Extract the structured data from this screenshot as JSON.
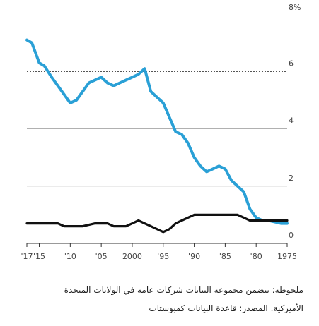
{
  "chart_data": {
    "type": "line",
    "x_tick_labels": [
      "'17",
      "'15",
      "'10",
      "'05",
      "2000",
      "'95",
      "'90",
      "'85",
      "'80",
      "1975"
    ],
    "y_tick_labels": [
      "8%",
      "6",
      "4",
      "2",
      "0"
    ],
    "ylim": [
      0,
      8
    ],
    "grid": "horizontal",
    "reference_line": 6,
    "colors": {
      "series_1": "#2aa0d6",
      "series_2": "#111111",
      "grid": "#b0b0b0",
      "ref": "#555555"
    },
    "series": [
      {
        "x": [
          2017,
          2016.2,
          2015,
          2014.2,
          2013,
          2012,
          2011,
          2010,
          2009,
          2008,
          2007,
          2006,
          2005,
          2004,
          2003,
          2002,
          2001,
          2000,
          1999,
          1998,
          1997,
          1996,
          1995,
          1994,
          1993,
          1992,
          1991,
          1990,
          1989,
          1988,
          1987,
          1986,
          1985,
          1984,
          1983,
          1982,
          1981,
          1980,
          1979,
          1978,
          1977,
          1976,
          1975
        ],
        "values": [
          7.1,
          7.0,
          6.3,
          6.2,
          5.8,
          5.5,
          5.2,
          4.9,
          5.0,
          5.3,
          5.6,
          5.7,
          5.8,
          5.6,
          5.5,
          5.6,
          5.7,
          5.8,
          5.9,
          6.1,
          5.3,
          5.1,
          4.9,
          4.4,
          3.9,
          3.8,
          3.5,
          3.0,
          2.7,
          2.5,
          2.6,
          2.7,
          2.6,
          2.2,
          2.0,
          1.8,
          1.2,
          0.9,
          0.8,
          0.8,
          0.75,
          0.7,
          0.7
        ]
      },
      {
        "x": [
          2017,
          2015,
          2013,
          2012,
          2011,
          2010,
          2009,
          2008,
          2007,
          2006,
          2005,
          2004,
          2003,
          2002,
          2001,
          2000,
          1999,
          1998,
          1997,
          1996,
          1995,
          1994,
          1993,
          1992,
          1991,
          1990,
          1989,
          1988,
          1987,
          1986,
          1985,
          1984,
          1983,
          1982,
          1981,
          1980,
          1979,
          1978,
          1977,
          1976,
          1975
        ],
        "values": [
          0.7,
          0.7,
          0.7,
          0.7,
          0.6,
          0.6,
          0.6,
          0.6,
          0.65,
          0.7,
          0.7,
          0.7,
          0.6,
          0.6,
          0.6,
          0.7,
          0.8,
          0.7,
          0.6,
          0.5,
          0.4,
          0.5,
          0.7,
          0.8,
          0.9,
          1.0,
          1.0,
          1.0,
          1.0,
          1.0,
          1.0,
          1.0,
          1.0,
          0.9,
          0.8,
          0.8,
          0.8,
          0.8,
          0.8,
          0.8,
          0.8
        ]
      }
    ]
  },
  "notes": {
    "line1": "ملحوظة: تتضمن مجموعة البيانات شركات عامة في الولايات المتحدة",
    "line2": "الأميركية. المصدر: قاعدة البيانات كمبوستات"
  }
}
